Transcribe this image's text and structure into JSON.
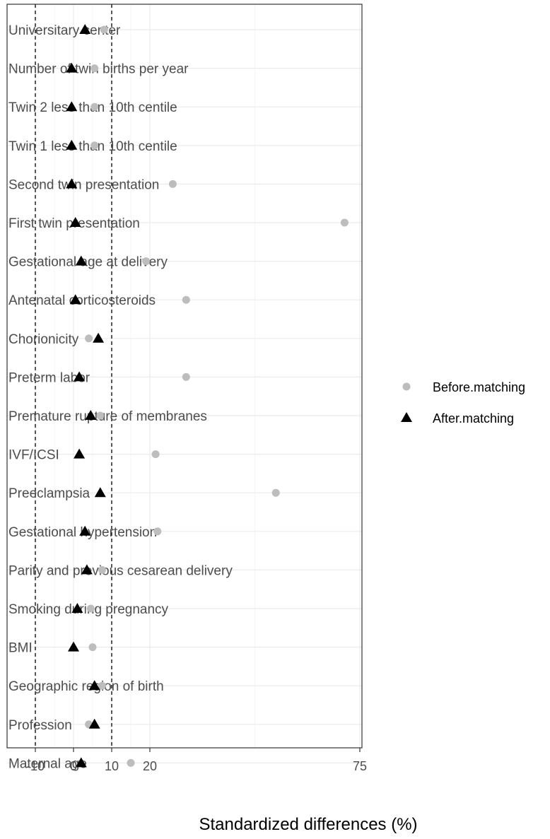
{
  "chart_data": {
    "type": "scatter",
    "xlabel": "Standardized differences (%)",
    "ylabel": "",
    "xlim": [
      -15,
      76
    ],
    "xticks": [
      -10,
      0,
      10,
      20,
      75
    ],
    "reference_lines": [
      -10,
      10
    ],
    "grid": true,
    "legend_position": "right",
    "categories": [
      "Universitary center",
      "Number of twin births per year",
      "Twin 2 less than 10th centile",
      "Twin 1 less than 10th centile",
      "Second twin presentation",
      "First twin presentation",
      "Gestational age at delivery",
      "Antenatal corticosteroids",
      "Chorionicity",
      "Preterm labor",
      "Premature rupture of membranes",
      "IVF/ICSI",
      "Preeclampsia",
      "Gestational hypertension",
      "Parity and previous cesarean delivery",
      "Smoking during pregnancy",
      "BMI",
      "Geographic region of birth",
      "Profession",
      "Maternal age"
    ],
    "series": [
      {
        "name": "Before.matching",
        "marker": "circle",
        "color": "#bdbdbd",
        "values": [
          8,
          5.5,
          5.5,
          5.5,
          26,
          71,
          19,
          29.5,
          4,
          29.5,
          7,
          21.5,
          53,
          22,
          7.5,
          4.5,
          5,
          7.5,
          4,
          15
        ]
      },
      {
        "name": "After.matching",
        "marker": "triangle",
        "color": "#000000",
        "values": [
          3,
          -0.5,
          -0.5,
          -0.5,
          -0.5,
          0.5,
          2,
          0.5,
          6.5,
          1.5,
          4.5,
          1.5,
          7,
          3,
          3.5,
          1,
          0,
          5.5,
          5.5,
          2
        ]
      }
    ]
  }
}
